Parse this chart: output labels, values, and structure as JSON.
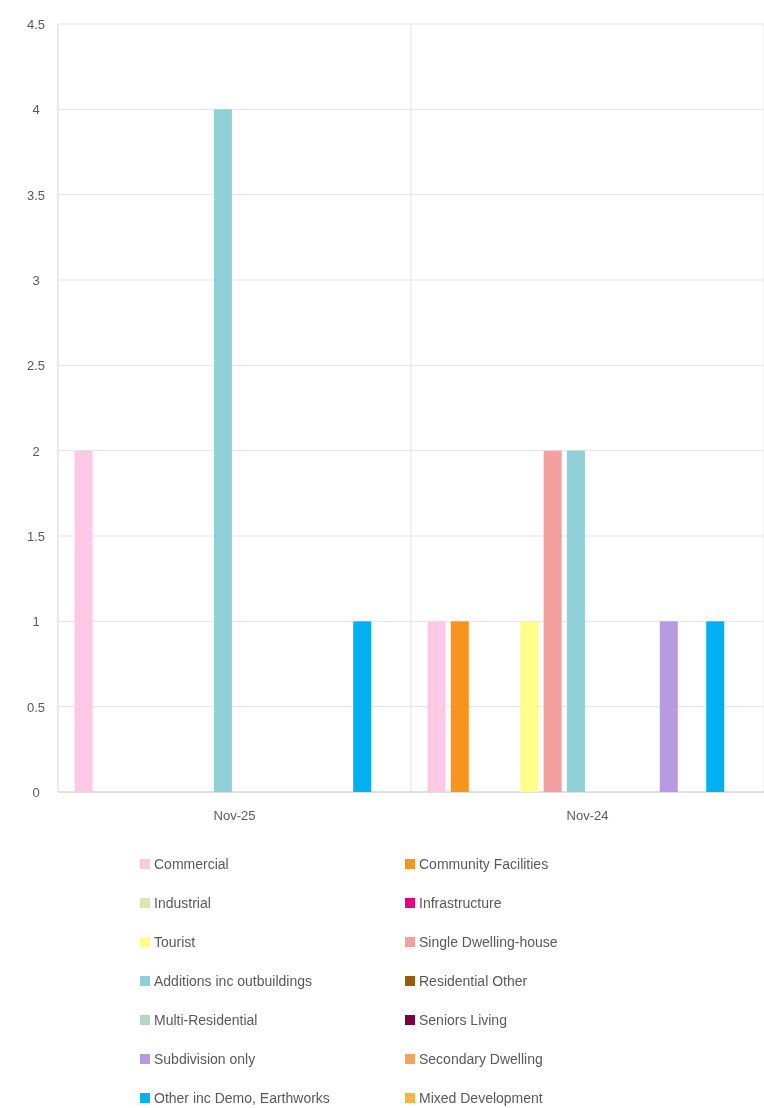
{
  "chart_data": {
    "type": "bar",
    "categories": [
      "Nov-25",
      "Nov-24"
    ],
    "series": [
      {
        "name": "Commercial",
        "color": "#ffc9e6",
        "values": [
          2,
          1
        ]
      },
      {
        "name": "Community Facilities",
        "color": "#f7941d",
        "values": [
          0,
          1
        ]
      },
      {
        "name": "Industrial",
        "color": "#d9e8b0",
        "values": [
          0,
          0
        ]
      },
      {
        "name": "Infrastructure",
        "color": "#e6007e",
        "values": [
          0,
          0
        ]
      },
      {
        "name": "Tourist",
        "color": "#ffff8a",
        "values": [
          0,
          1
        ]
      },
      {
        "name": "Single Dwelling-house",
        "color": "#f4a0a0",
        "values": [
          0,
          2
        ]
      },
      {
        "name": "Additions inc outbuildings",
        "color": "#8ecfd8",
        "values": [
          4,
          2
        ]
      },
      {
        "name": "Residential Other",
        "color": "#9c5b00",
        "values": [
          0,
          0
        ]
      },
      {
        "name": "Multi-Residential",
        "color": "#b5d6c0",
        "values": [
          0,
          0
        ]
      },
      {
        "name": "Seniors Living",
        "color": "#7a0040",
        "values": [
          0,
          0
        ]
      },
      {
        "name": "Subdivision only",
        "color": "#b89ae0",
        "values": [
          0,
          1
        ]
      },
      {
        "name": "Secondary Dwelling",
        "color": "#f7a35c",
        "values": [
          0,
          0
        ]
      },
      {
        "name": "Other inc Demo, Earthworks",
        "color": "#00b0f0",
        "values": [
          1,
          1
        ]
      },
      {
        "name": "Mixed Development",
        "color": "#ffb347",
        "values": [
          0,
          0
        ]
      }
    ],
    "ylim": [
      0,
      4.5
    ],
    "yticks": [
      0,
      0.5,
      1,
      1.5,
      2,
      2.5,
      3,
      3.5,
      4,
      4.5
    ],
    "grid": "y",
    "legend": "bottom"
  }
}
